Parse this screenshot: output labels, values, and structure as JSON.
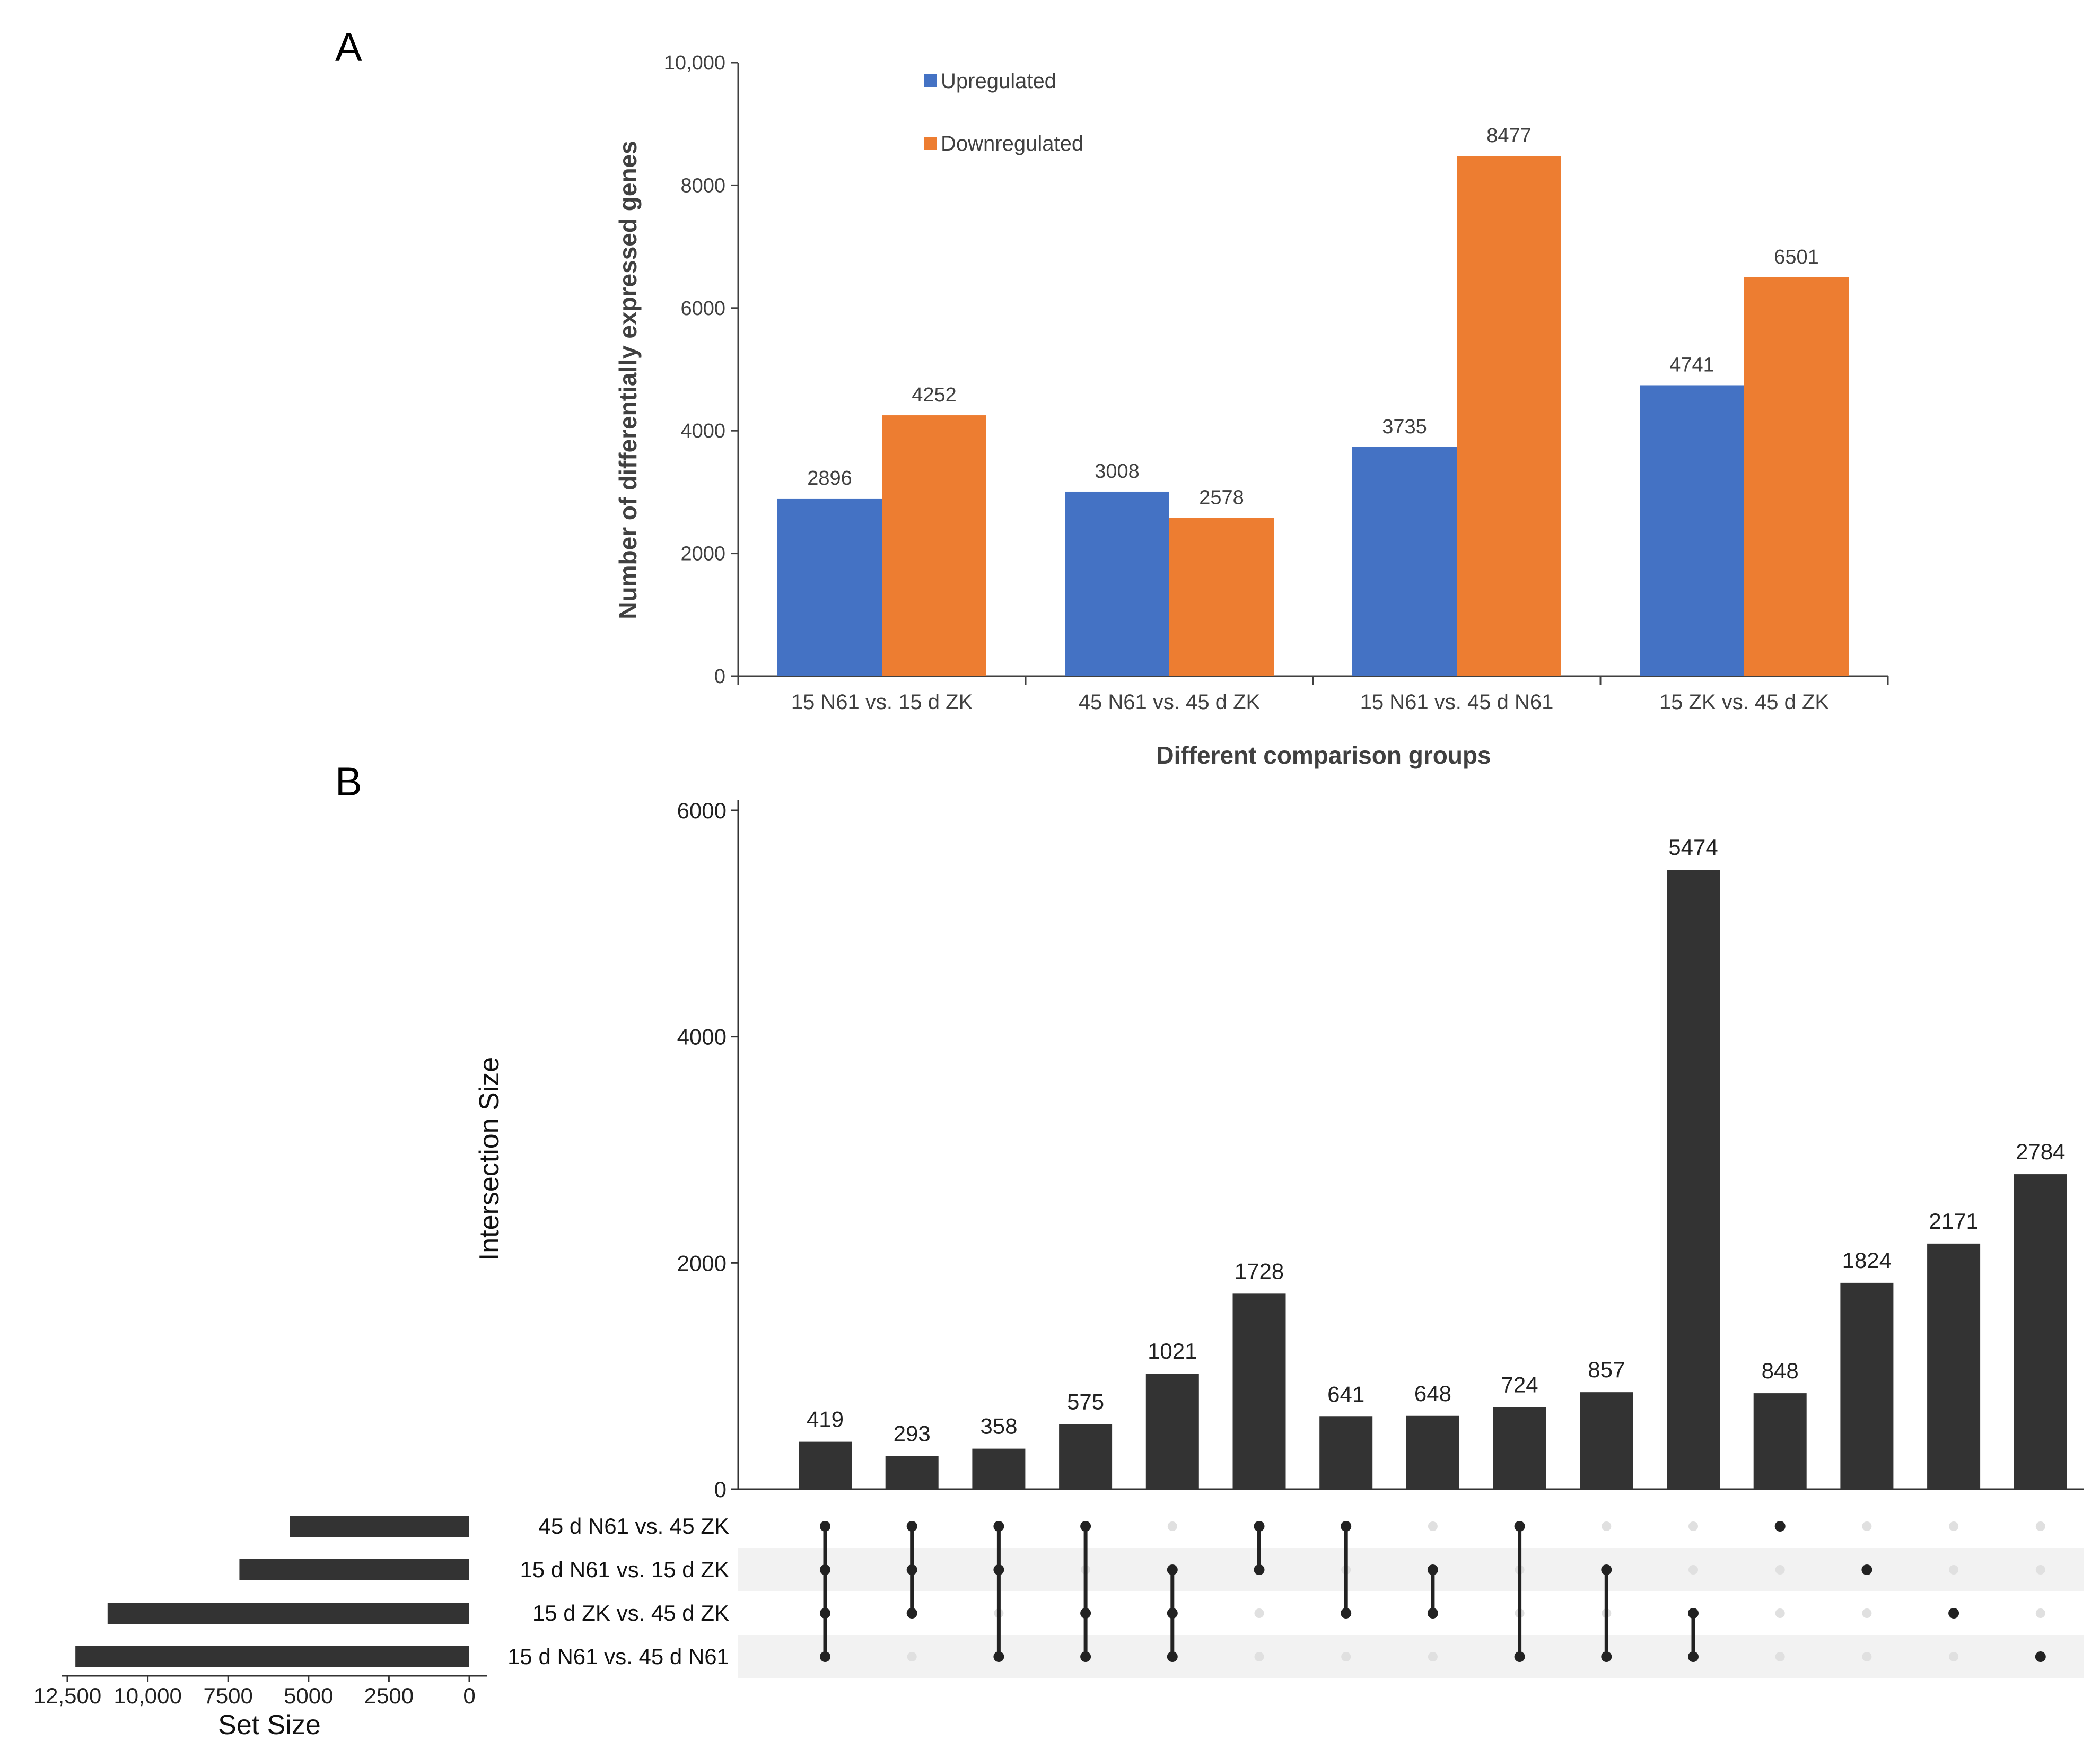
{
  "panels": {
    "a": "A",
    "b": "B"
  },
  "chart_data": [
    {
      "type": "bar",
      "panel": "A",
      "title": "",
      "xlabel": "Different comparison groups",
      "ylabel": "Number of differentially expressed genes",
      "ylim": [
        0,
        10000
      ],
      "yticks": [
        "0",
        "2000",
        "4000",
        "6000",
        "8000",
        "10,000"
      ],
      "yticks_values": [
        0,
        2000,
        4000,
        6000,
        8000,
        10000
      ],
      "categories": [
        "15 N61 vs. 15 d ZK",
        "45 N61 vs. 45 d ZK",
        "15 N61 vs. 45 d N61",
        "15 ZK vs. 45 d ZK"
      ],
      "series": [
        {
          "name": "Upregulated",
          "color": "#4472c4",
          "values": [
            2896,
            3008,
            3735,
            4741
          ],
          "labels": [
            "2896",
            "3008",
            "3735",
            "4741"
          ]
        },
        {
          "name": "Downregulated",
          "color": "#ed7d31",
          "values": [
            4252,
            2578,
            8477,
            6501
          ],
          "labels": [
            "4252",
            "2578",
            "8477",
            "6501"
          ]
        }
      ],
      "legend": "top-left"
    },
    {
      "type": "bar",
      "panel": "B",
      "subtype": "upset",
      "ylabel": "Intersection Size",
      "ylim": [
        0,
        6000
      ],
      "yticks": [
        "0",
        "2000",
        "4000",
        "6000"
      ],
      "yticks_values": [
        0,
        2000,
        4000,
        6000
      ],
      "bar_color": "#333333",
      "sets": [
        "45 d N61 vs. 45 ZK",
        "15 d N61 vs. 15 d ZK",
        "15 d ZK vs. 45 d ZK",
        "15 d N61 vs. 45 d N61"
      ],
      "set_sizes": [
        5590,
        7150,
        11250,
        12250
      ],
      "set_size_label": "Set Size",
      "set_size_ticks": [
        "12,500",
        "10,000",
        "7500",
        "5000",
        "2500",
        "0"
      ],
      "set_size_ticks_values": [
        12500,
        10000,
        7500,
        5000,
        2500,
        0
      ],
      "intersections": [
        {
          "value": 419,
          "label": "419",
          "sets": [
            0,
            1,
            2,
            3
          ]
        },
        {
          "value": 293,
          "label": "293",
          "sets": [
            0,
            1,
            2
          ]
        },
        {
          "value": 358,
          "label": "358",
          "sets": [
            0,
            1,
            3
          ]
        },
        {
          "value": 575,
          "label": "575",
          "sets": [
            0,
            2,
            3
          ]
        },
        {
          "value": 1021,
          "label": "1021",
          "sets": [
            1,
            2,
            3
          ]
        },
        {
          "value": 1728,
          "label": "1728",
          "sets": [
            0,
            1
          ]
        },
        {
          "value": 641,
          "label": "641",
          "sets": [
            0,
            2
          ]
        },
        {
          "value": 648,
          "label": "648",
          "sets": [
            1,
            2
          ]
        },
        {
          "value": 724,
          "label": "724",
          "sets": [
            0,
            3
          ]
        },
        {
          "value": 857,
          "label": "857",
          "sets": [
            1,
            3
          ]
        },
        {
          "value": 5474,
          "label": "5474",
          "sets": [
            2,
            3
          ]
        },
        {
          "value": 848,
          "label": "848",
          "sets": [
            0
          ]
        },
        {
          "value": 1824,
          "label": "1824",
          "sets": [
            1
          ]
        },
        {
          "value": 2171,
          "label": "2171",
          "sets": [
            2
          ]
        },
        {
          "value": 2784,
          "label": "2784",
          "sets": [
            3
          ]
        }
      ]
    }
  ]
}
